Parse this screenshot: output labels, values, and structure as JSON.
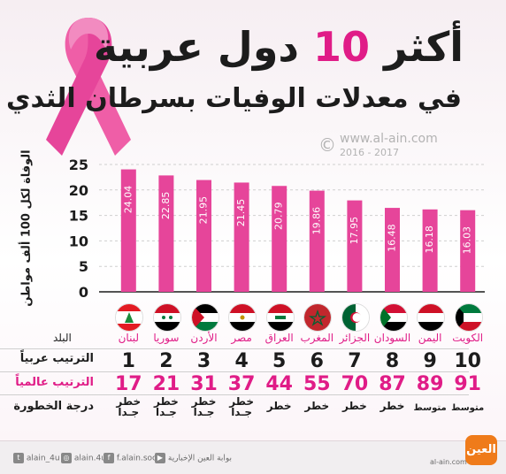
{
  "header": {
    "title_prefix": "أكثر",
    "title_number": "10",
    "title_suffix": "دول عربية",
    "subtitle": "في معدلات الوفيات بسرطان الثدي"
  },
  "watermark": {
    "symbol": "©",
    "site": "www.al-ain.com",
    "years": "2016 - 2017"
  },
  "colors": {
    "accent": "#e01c87",
    "bar": "#e6459a",
    "ribbon": "#ef5ea7"
  },
  "chart_data": {
    "type": "bar",
    "ylabel": "الوفاة لكل 100 ألف مواطن",
    "ylim": [
      0,
      25
    ],
    "yticks": [
      0,
      5,
      10,
      15,
      20,
      25
    ],
    "categories": [
      "لبنان",
      "سوريا",
      "الأردن",
      "مصر",
      "العراق",
      "المغرب",
      "الجزائر",
      "السودان",
      "اليمن",
      "الكويت"
    ],
    "values": [
      24.04,
      22.85,
      21.95,
      21.45,
      20.79,
      19.86,
      17.95,
      16.48,
      16.18,
      16.03
    ],
    "data_labels": [
      "24.04",
      "22.85",
      "21.95",
      "21.45",
      "20.79",
      "19.86",
      "17.95",
      "16.48",
      "16.18",
      "16.03"
    ]
  },
  "table": {
    "country_header": "البلد",
    "arab_rank_label": "الترتيب عربياً",
    "world_rank_label": "الترتيب عالمياً",
    "risk_label": "درجة الخطورة",
    "countries": [
      {
        "name": "لبنان",
        "flag": "lebanon-flag-icon",
        "arab_rank": "1",
        "world_rank": "17",
        "risk": "خطر جدا",
        "risk_lines": [
          "خطر",
          "جـدا"
        ]
      },
      {
        "name": "سوريا",
        "flag": "syria-flag-icon",
        "arab_rank": "2",
        "world_rank": "21",
        "risk": "خطر جدا",
        "risk_lines": [
          "خطر",
          "جـدا"
        ]
      },
      {
        "name": "الأردن",
        "flag": "jordan-flag-icon",
        "arab_rank": "3",
        "world_rank": "31",
        "risk": "خطر جدا",
        "risk_lines": [
          "خطر",
          "جـدا"
        ]
      },
      {
        "name": "مصر",
        "flag": "egypt-flag-icon",
        "arab_rank": "4",
        "world_rank": "37",
        "risk": "خطر جدا",
        "risk_lines": [
          "خطر",
          "جـدا"
        ]
      },
      {
        "name": "العراق",
        "flag": "iraq-flag-icon",
        "arab_rank": "5",
        "world_rank": "44",
        "risk": "خطر",
        "risk_lines": [
          "خطر"
        ]
      },
      {
        "name": "المغرب",
        "flag": "morocco-flag-icon",
        "arab_rank": "6",
        "world_rank": "55",
        "risk": "خطر",
        "risk_lines": [
          "خطر"
        ]
      },
      {
        "name": "الجزائر",
        "flag": "algeria-flag-icon",
        "arab_rank": "7",
        "world_rank": "70",
        "risk": "خطر",
        "risk_lines": [
          "خطر"
        ]
      },
      {
        "name": "السودان",
        "flag": "sudan-flag-icon",
        "arab_rank": "8",
        "world_rank": "87",
        "risk": "خطر",
        "risk_lines": [
          "خطر"
        ]
      },
      {
        "name": "اليمن",
        "flag": "yemen-flag-icon",
        "arab_rank": "9",
        "world_rank": "89",
        "risk": "متوسط",
        "risk_lines": [
          "متوسط"
        ]
      },
      {
        "name": "الكويت",
        "flag": "kuwait-flag-icon",
        "arab_rank": "10",
        "world_rank": "91",
        "risk": "متوسط",
        "risk_lines": [
          "متوسط"
        ]
      }
    ]
  },
  "footer": {
    "twitter": "alain_4u",
    "instagram": "alain.4u",
    "facebook": "f.alain.social",
    "youtube": "بوابة العين الإخبارية",
    "site": "al-ain.com",
    "logo_text": "العين"
  }
}
